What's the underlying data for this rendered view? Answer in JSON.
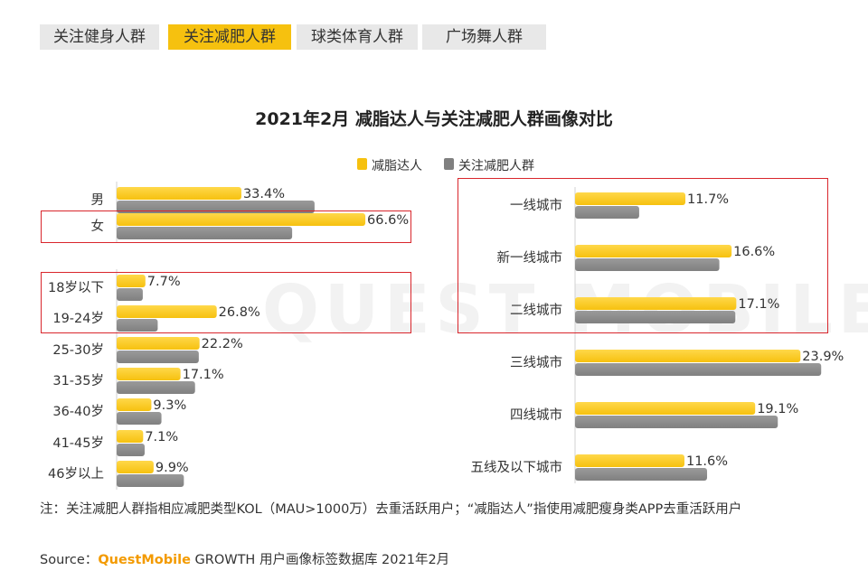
{
  "tabs": [
    {
      "label": "关注健身人群",
      "active": false
    },
    {
      "label": "关注减肥人群",
      "active": true
    },
    {
      "label": "球类体育人群",
      "active": false
    },
    {
      "label": "广场舞人群",
      "active": false
    }
  ],
  "watermark": "QUEST MOBILE",
  "colors": {
    "series_a": "#f6c10f",
    "series_b": "#808080",
    "highlight": "#d9262c",
    "brand": "#f39a00"
  },
  "chart_data": {
    "type": "bar",
    "orientation": "horizontal",
    "title": "2021年2月 减脂达人与关注减肥人群画像对比",
    "legend": [
      "减脂达人",
      "关注减肥人群"
    ],
    "panels": [
      {
        "name": "gender",
        "categories": [
          "男",
          "女"
        ],
        "series": [
          {
            "name": "减脂达人",
            "values": [
              33.4,
              66.6
            ],
            "labels": [
              "33.4%",
              "66.6%"
            ]
          },
          {
            "name": "关注减肥人群",
            "values": [
              53.0,
              47.0
            ]
          }
        ],
        "highlighted": [
          "女"
        ]
      },
      {
        "name": "age",
        "categories": [
          "18岁以下",
          "19-24岁",
          "25-30岁",
          "31-35岁",
          "36-40岁",
          "41-45岁",
          "46岁以上"
        ],
        "series": [
          {
            "name": "减脂达人",
            "values": [
              7.7,
              26.8,
              22.2,
              17.1,
              9.3,
              7.1,
              9.9
            ],
            "labels": [
              "7.7%",
              "26.8%",
              "22.2%",
              "17.1%",
              "9.3%",
              "7.1%",
              "9.9%"
            ]
          },
          {
            "name": "关注减肥人群",
            "values": [
              7.0,
              11.0,
              22.0,
              21.0,
              12.0,
              7.5,
              18.0
            ]
          }
        ],
        "highlighted": [
          "18岁以下",
          "19-24岁"
        ]
      },
      {
        "name": "city_tier",
        "categories": [
          "一线城市",
          "新一线城市",
          "二线城市",
          "三线城市",
          "四线城市",
          "五线及以下城市"
        ],
        "series": [
          {
            "name": "减脂达人",
            "values": [
              11.7,
              16.6,
              17.1,
              23.9,
              19.1,
              11.6
            ],
            "labels": [
              "11.7%",
              "16.6%",
              "17.1%",
              "23.9%",
              "19.1%",
              "11.6%"
            ]
          },
          {
            "name": "关注减肥人群",
            "values": [
              6.8,
              15.3,
              17.0,
              26.1,
              21.5,
              14.0
            ]
          }
        ],
        "highlighted": [
          "一线城市",
          "新一线城市",
          "二线城市"
        ]
      }
    ]
  },
  "note": "注：关注减肥人群指相应减肥类型KOL（MAU>1000万）去重活跃用户；“减脂达人”指使用减肥瘦身类APP去重活跃用户",
  "source": {
    "prefix": "Source：",
    "brand": "QuestMobile",
    "suffix": " GROWTH 用户画像标签数据库 2021年2月"
  }
}
